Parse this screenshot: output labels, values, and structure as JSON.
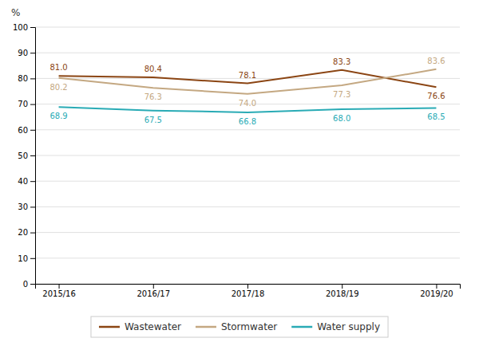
{
  "chart_data": {
    "type": "line",
    "y_label": "%",
    "categories": [
      "2015/16",
      "2016/17",
      "2017/18",
      "2018/19",
      "2019/20"
    ],
    "series": [
      {
        "name": "Wastewater",
        "color": "#8B4513",
        "values": [
          81.0,
          80.4,
          78.1,
          83.3,
          76.6
        ],
        "value_labels": [
          "81.0",
          "80.4",
          "78.1",
          "83.3",
          "76.6"
        ]
      },
      {
        "name": "Stormwater",
        "color": "#C4A882",
        "values": [
          80.2,
          76.3,
          74.0,
          77.3,
          83.6
        ],
        "value_labels": [
          "80.2",
          "76.3",
          "74.0",
          "77.3",
          "83.6"
        ]
      },
      {
        "name": "Water supply",
        "color": "#29ABB5",
        "values": [
          68.9,
          67.5,
          66.8,
          68.0,
          68.5
        ],
        "value_labels": [
          "68.9",
          "67.5",
          "66.8",
          "68.0",
          "68.5"
        ]
      }
    ],
    "ylim": [
      0,
      100
    ],
    "yticks": [
      0,
      10,
      20,
      30,
      40,
      50,
      60,
      70,
      80,
      90,
      100
    ],
    "grid": true,
    "data_labels": true,
    "legend": "bottom"
  }
}
